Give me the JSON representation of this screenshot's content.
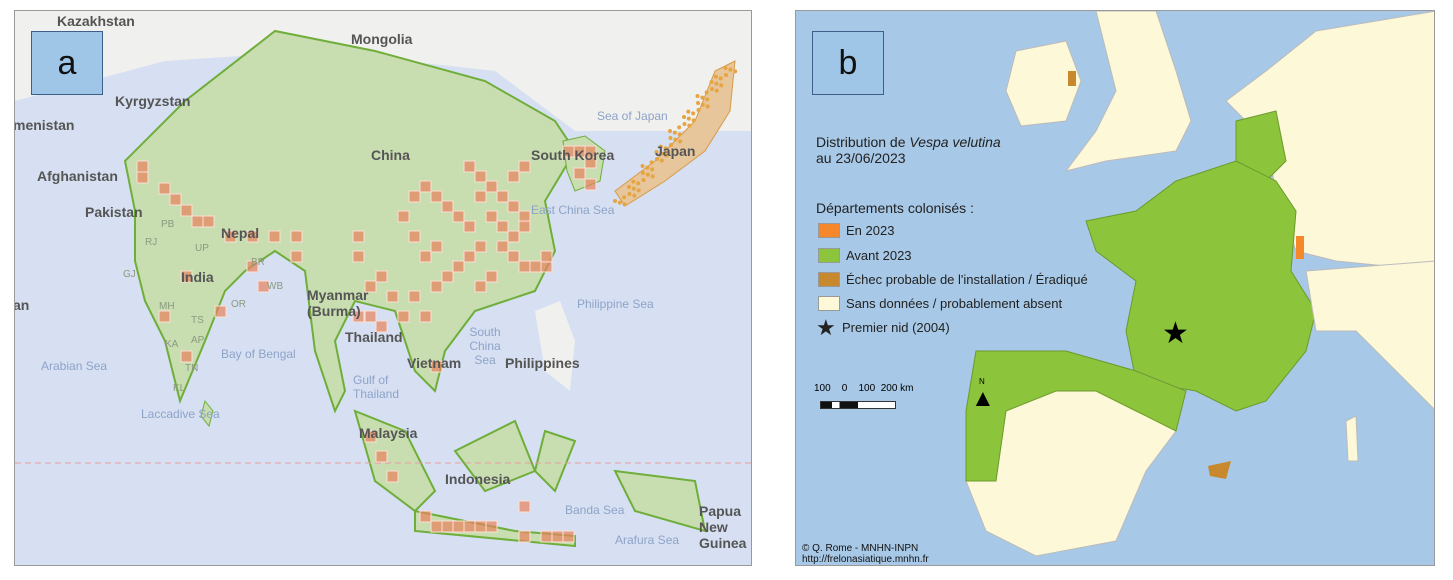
{
  "panel_a": {
    "tag": "a",
    "labels": {
      "kazakhstan": "Kazakhstan",
      "mongolia": "Mongolia",
      "kyrgyzstan": "Kyrgyzstan",
      "turkmenistan": "menistan",
      "afghanistan": "Afghanistan",
      "pakistan": "Pakistan",
      "china": "China",
      "south_korea": "South Korea",
      "japan": "Japan",
      "india": "India",
      "nepal": "Nepal",
      "myanmar": "Myanmar (Burma)",
      "thailand": "Thailand",
      "vietnam": "Vietnam",
      "philippines": "Philippines",
      "malaysia": "Malaysia",
      "indonesia": "Indonesia",
      "papua": "Papua New Guinea",
      "iran": "an"
    },
    "seas": {
      "sea_of_japan": "Sea of Japan",
      "east_china_sea": "East China Sea",
      "philippine_sea": "Philippine Sea",
      "south_china_sea": "South China Sea",
      "bay_of_bengal": "Bay of Bengal",
      "arabian_sea": "Arabian Sea",
      "laccadive_sea": "Laccadive Sea",
      "gulf_of_thailand": "Gulf of Thailand",
      "banda_sea": "Banda Sea",
      "arafura_sea": "Arafura Sea"
    },
    "states": [
      "RJ",
      "GJ",
      "MH",
      "TS",
      "AP",
      "KA",
      "TN",
      "KL",
      "OR",
      "BR",
      "UP",
      "PB",
      "WB"
    ],
    "colors": {
      "land": "#c8ddb0",
      "border": "#6fae3a",
      "occurrence": "#e8825e",
      "sea": "#d6e0f2"
    }
  },
  "panel_b": {
    "tag": "b",
    "title_prefix": "Distribution de ",
    "title_species": "Vespa velutina",
    "title_date": "au 23/06/2023",
    "legend_title": "Départements colonisés :",
    "legend": [
      {
        "label": "En 2023",
        "color": "#f5882a"
      },
      {
        "label": "Avant 2023",
        "color": "#8cc43c"
      },
      {
        "label": "Échec probable de l'installation / Éradiqué",
        "color": "#c8892e"
      },
      {
        "label": "Sans données / probablement absent",
        "color": "#fdf8d8"
      }
    ],
    "first_nest": "Premier nid (2004)",
    "scale_label": "100    0    100  200 km",
    "north": "N",
    "credit": "© Q. Rome - MNHN-INPN",
    "url": "http://frelonasiatique.mnhn.fr",
    "colors": {
      "sea": "#a7c8e6"
    }
  }
}
